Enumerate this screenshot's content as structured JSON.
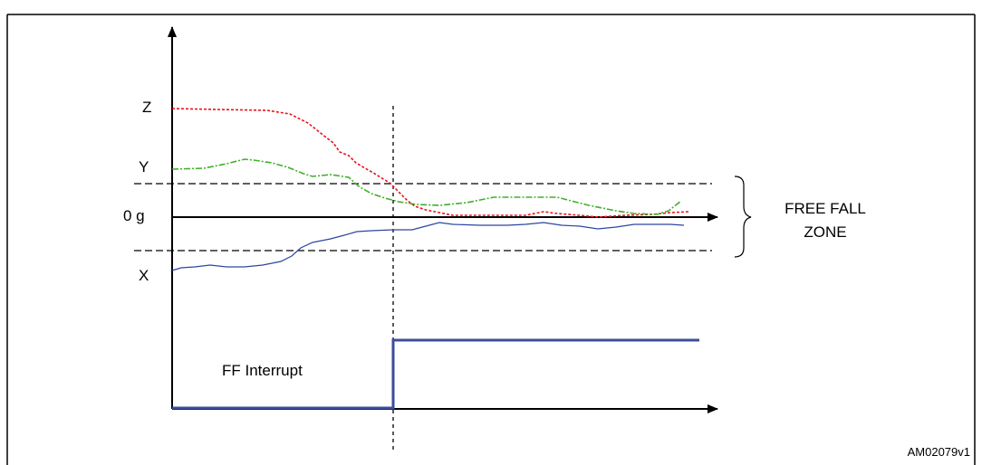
{
  "figure": {
    "header_text": "",
    "reference_code": "AM02079v1"
  },
  "labels": {
    "z_label": "Z",
    "y_label": "Y",
    "zero_g_label": "0 g",
    "x_label": "X",
    "zone_label_line1": "FREE FALL",
    "zone_label_line2": "ZONE",
    "interrupt_label": "FF Interrupt"
  },
  "colors": {
    "z_signal": "#e8141b",
    "y_signal": "#41b02c",
    "x_signal": "#2d46a0",
    "interrupt_signal": "#3c4d9e",
    "axes": "#000000"
  }
}
